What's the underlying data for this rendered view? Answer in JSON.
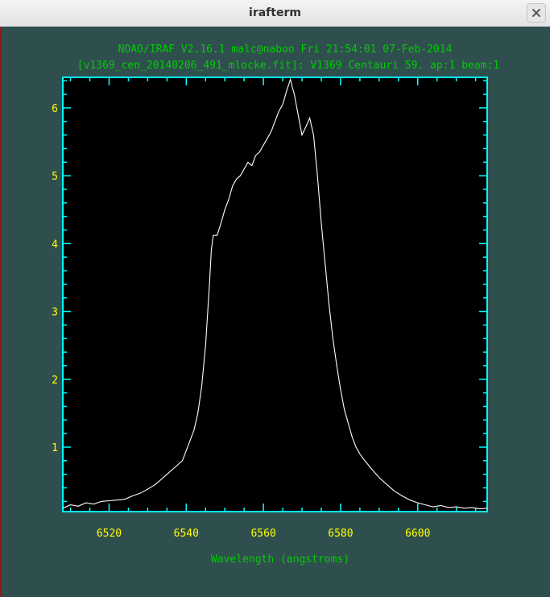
{
  "window": {
    "title": "irafterm"
  },
  "colors": {
    "terminal_bg": "#2f4f4f",
    "plot_bg": "#000000",
    "frame": "#00ffff",
    "header_text": "#00cc00",
    "tick_text": "#ffff00",
    "xlabel_text": "#00cc00",
    "trace": "#ffffff"
  },
  "chart_data": {
    "type": "line",
    "header_line1": "NOAO/IRAF V2.16.1 malc@naboo Fri 21:54:01 07-Feb-2014",
    "header_line2": "[v1369_cen_20140206_491_mlocke.fit]: V1369 Centauri 59. ap:1 beam:1",
    "xlabel": "Wavelength (angstroms)",
    "ylabel": "",
    "xlim": [
      6508,
      6618
    ],
    "ylim": [
      0.05,
      6.45
    ],
    "xticks_major": [
      6520,
      6540,
      6560,
      6580,
      6600
    ],
    "xtick_labels": [
      "6520",
      "6540",
      "6560",
      "6580",
      "6600"
    ],
    "yticks_major": [
      1,
      2,
      3,
      4,
      5,
      6
    ],
    "ytick_labels": [
      "1",
      "2",
      "3",
      "4",
      "5",
      "6"
    ],
    "series": [
      {
        "x": [
          6508,
          6510,
          6512,
          6514,
          6516,
          6518,
          6520,
          6522,
          6524,
          6526,
          6528,
          6530,
          6532,
          6534,
          6536,
          6538,
          6539,
          6540,
          6541,
          6542,
          6543,
          6544,
          6545,
          6546,
          6546.5,
          6547,
          6548,
          6549,
          6550,
          6551,
          6552,
          6553,
          6554,
          6555,
          6556,
          6557,
          6558,
          6559,
          6560,
          6561,
          6562,
          6563,
          6564,
          6565,
          6566,
          6567,
          6567.5,
          6568,
          6569,
          6570,
          6571,
          6572,
          6573,
          6574,
          6575,
          6576,
          6577,
          6578,
          6579,
          6580,
          6581,
          6582,
          6583,
          6584,
          6585,
          6586,
          6587,
          6588,
          6590,
          6592,
          6594,
          6596,
          6598,
          6600,
          6602,
          6604,
          6606,
          6608,
          6610,
          6612,
          6614,
          6616,
          6618
        ],
        "y": [
          0.1,
          0.15,
          0.13,
          0.18,
          0.16,
          0.2,
          0.21,
          0.22,
          0.23,
          0.28,
          0.32,
          0.38,
          0.45,
          0.55,
          0.65,
          0.75,
          0.8,
          0.95,
          1.1,
          1.25,
          1.5,
          1.9,
          2.5,
          3.4,
          3.9,
          4.12,
          4.12,
          4.3,
          4.5,
          4.65,
          4.85,
          4.95,
          5.0,
          5.1,
          5.2,
          5.15,
          5.3,
          5.35,
          5.45,
          5.55,
          5.65,
          5.8,
          5.95,
          6.05,
          6.25,
          6.42,
          6.3,
          6.2,
          5.9,
          5.6,
          5.72,
          5.85,
          5.6,
          5.0,
          4.3,
          3.7,
          3.1,
          2.6,
          2.2,
          1.85,
          1.55,
          1.35,
          1.15,
          1.0,
          0.9,
          0.82,
          0.75,
          0.68,
          0.55,
          0.45,
          0.35,
          0.28,
          0.22,
          0.18,
          0.15,
          0.12,
          0.14,
          0.11,
          0.12,
          0.1,
          0.11,
          0.09,
          0.1
        ]
      }
    ]
  }
}
